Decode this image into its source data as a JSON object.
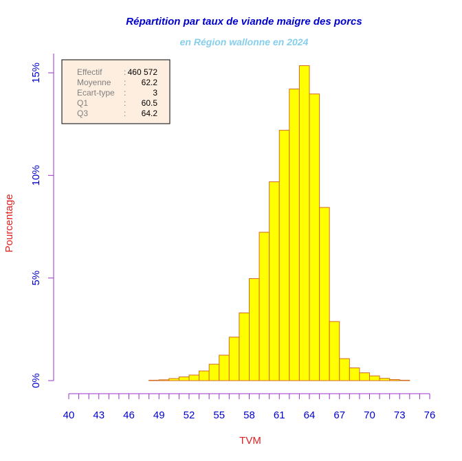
{
  "chart_data": {
    "type": "bar",
    "title": "Répartition par taux de viande maigre des porcs",
    "subtitle": "en Région wallonne en 2024",
    "xlabel": "TVM",
    "ylabel": "Pourcentage",
    "x_ticks": [
      "40",
      "43",
      "46",
      "49",
      "52",
      "55",
      "58",
      "61",
      "64",
      "67",
      "70",
      "73",
      "76"
    ],
    "y_ticks": [
      "0%",
      "5%",
      "10%",
      "15%"
    ],
    "xlim": [
      40,
      76
    ],
    "ylim": [
      0,
      15
    ],
    "bin_width": 1,
    "bins_start": [
      40,
      41,
      42,
      43,
      44,
      45,
      46,
      47,
      48,
      49,
      50,
      51,
      52,
      53,
      54,
      55,
      56,
      57,
      58,
      59,
      60,
      61,
      62,
      63,
      64,
      65,
      66,
      67,
      68,
      69,
      70,
      71,
      72,
      73,
      74
    ],
    "values": [
      0,
      0,
      0,
      0,
      0,
      0,
      0,
      0,
      0.02,
      0.04,
      0.1,
      0.18,
      0.27,
      0.47,
      0.8,
      1.24,
      2.12,
      3.3,
      4.97,
      7.23,
      9.69,
      12.2,
      14.21,
      15.35,
      13.97,
      8.44,
      2.88,
      1.07,
      0.62,
      0.38,
      0.23,
      0.11,
      0.05,
      0.02,
      0
    ],
    "bar_fill": "#ffff00",
    "bar_border": "#d2691e",
    "axis_color": "#9932cc",
    "stats": [
      {
        "label": "Effectif",
        "sep": ":",
        "value": "460 572"
      },
      {
        "label": "Moyenne",
        "sep": ":",
        "value": "62.2"
      },
      {
        "label": "Ecart-type",
        "sep": ":",
        "value": "3"
      },
      {
        "label": "Q1",
        "sep": ":",
        "value": "60.5"
      },
      {
        "label": "Q3",
        "sep": ":",
        "value": "64.2"
      }
    ],
    "stats_box_fill": "#fdeee0"
  }
}
